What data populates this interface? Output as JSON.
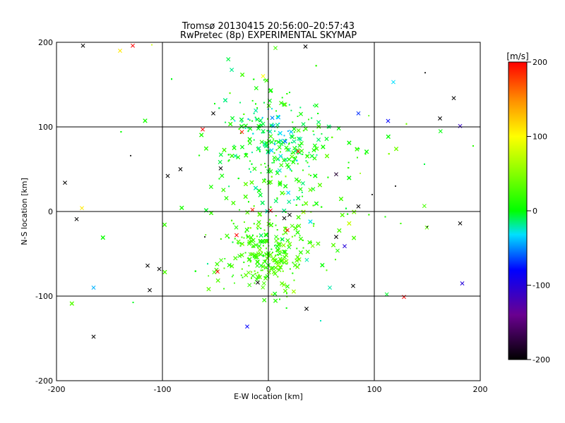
{
  "chart_data": {
    "type": "scatter",
    "title": "Tromsø 20130415 20:56:00–20:57:43",
    "subtitle": "RwPretec (8p) EXPERIMENTAL SKYMAP",
    "xlabel": "E-W location [km]",
    "ylabel": "N-S location [km]",
    "xlim": [
      -200,
      200
    ],
    "ylim": [
      -200,
      200
    ],
    "x_ticks": [
      -200,
      -100,
      0,
      100,
      200
    ],
    "y_ticks": [
      -200,
      -100,
      0,
      100,
      200
    ],
    "grid": true,
    "colorbar": {
      "label": "[m/s]",
      "range": [
        -200,
        200
      ],
      "ticks": [
        200,
        100,
        0,
        -100,
        -200
      ]
    },
    "marker_types": [
      "cross",
      "dot"
    ],
    "points": [
      {
        "x": -175,
        "y": 196,
        "v": -200,
        "m": "cross"
      },
      {
        "x": -128,
        "y": 196,
        "v": 200,
        "m": "cross"
      },
      {
        "x": -140,
        "y": 190,
        "v": 110,
        "m": "cross"
      },
      {
        "x": -110,
        "y": 197,
        "v": 80,
        "m": "dot"
      },
      {
        "x": 35,
        "y": 195,
        "v": -200,
        "m": "cross"
      },
      {
        "x": 175,
        "y": 134,
        "v": -200,
        "m": "cross"
      },
      {
        "x": 162,
        "y": 110,
        "v": -200,
        "m": "cross"
      },
      {
        "x": 181,
        "y": 101,
        "v": -110,
        "m": "cross"
      },
      {
        "x": 113,
        "y": 107,
        "v": -80,
        "m": "cross"
      },
      {
        "x": 85,
        "y": 116,
        "v": -70,
        "m": "cross"
      },
      {
        "x": 148,
        "y": 164,
        "v": -200,
        "m": "dot"
      },
      {
        "x": 118,
        "y": 153,
        "v": -30,
        "m": "cross"
      },
      {
        "x": -52,
        "y": 116,
        "v": -200,
        "m": "cross"
      },
      {
        "x": -62,
        "y": 97,
        "v": 200,
        "m": "cross"
      },
      {
        "x": -25,
        "y": 94,
        "v": 190,
        "m": "cross"
      },
      {
        "x": 28,
        "y": 71,
        "v": 200,
        "m": "cross"
      },
      {
        "x": -95,
        "y": 42,
        "v": -200,
        "m": "cross"
      },
      {
        "x": -83,
        "y": 50,
        "v": -200,
        "m": "cross"
      },
      {
        "x": -45,
        "y": 51,
        "v": -200,
        "m": "cross"
      },
      {
        "x": -192,
        "y": 34,
        "v": -200,
        "m": "cross"
      },
      {
        "x": 64,
        "y": 44,
        "v": -180,
        "m": "cross"
      },
      {
        "x": 85,
        "y": 6,
        "v": -200,
        "m": "cross"
      },
      {
        "x": -181,
        "y": -9,
        "v": -200,
        "m": "cross"
      },
      {
        "x": -176,
        "y": 4,
        "v": 110,
        "m": "cross"
      },
      {
        "x": 2,
        "y": 1,
        "v": 200,
        "m": "cross"
      },
      {
        "x": -15,
        "y": 2,
        "v": 190,
        "m": "cross"
      },
      {
        "x": 20,
        "y": -4,
        "v": -200,
        "m": "cross"
      },
      {
        "x": 15,
        "y": -8,
        "v": -200,
        "m": "cross"
      },
      {
        "x": 18,
        "y": -22,
        "v": 200,
        "m": "cross"
      },
      {
        "x": 64,
        "y": -30,
        "v": -200,
        "m": "cross"
      },
      {
        "x": 72,
        "y": -41,
        "v": -100,
        "m": "cross"
      },
      {
        "x": 181,
        "y": -14,
        "v": -200,
        "m": "cross"
      },
      {
        "x": -114,
        "y": -64,
        "v": -200,
        "m": "cross"
      },
      {
        "x": -103,
        "y": -68,
        "v": -200,
        "m": "cross"
      },
      {
        "x": -112,
        "y": -93,
        "v": -200,
        "m": "cross"
      },
      {
        "x": -48,
        "y": -71,
        "v": 200,
        "m": "cross"
      },
      {
        "x": -10,
        "y": -84,
        "v": -200,
        "m": "cross"
      },
      {
        "x": 80,
        "y": -88,
        "v": -200,
        "m": "cross"
      },
      {
        "x": 36,
        "y": -115,
        "v": -200,
        "m": "cross"
      },
      {
        "x": 128,
        "y": -101,
        "v": 200,
        "m": "cross"
      },
      {
        "x": 183,
        "y": -85,
        "v": -100,
        "m": "cross"
      },
      {
        "x": -165,
        "y": -148,
        "v": -200,
        "m": "cross"
      },
      {
        "x": -165,
        "y": -90,
        "v": -40,
        "m": "cross"
      },
      {
        "x": 58,
        "y": -90,
        "v": -20,
        "m": "cross"
      },
      {
        "x": -30,
        "y": -28,
        "v": 200,
        "m": "cross"
      },
      {
        "x": -5,
        "y": 160,
        "v": 100,
        "m": "cross"
      },
      {
        "x": -20,
        "y": -136,
        "v": -80,
        "m": "cross"
      },
      {
        "x": 98,
        "y": 20,
        "v": -200,
        "m": "dot"
      },
      {
        "x": -130,
        "y": 66,
        "v": -200,
        "m": "dot"
      },
      {
        "x": 120,
        "y": 30,
        "v": -200,
        "m": "dot"
      },
      {
        "x": -60,
        "y": -30,
        "v": -200,
        "m": "dot"
      },
      {
        "x": 150,
        "y": -18,
        "v": -200,
        "m": "dot"
      }
    ]
  }
}
